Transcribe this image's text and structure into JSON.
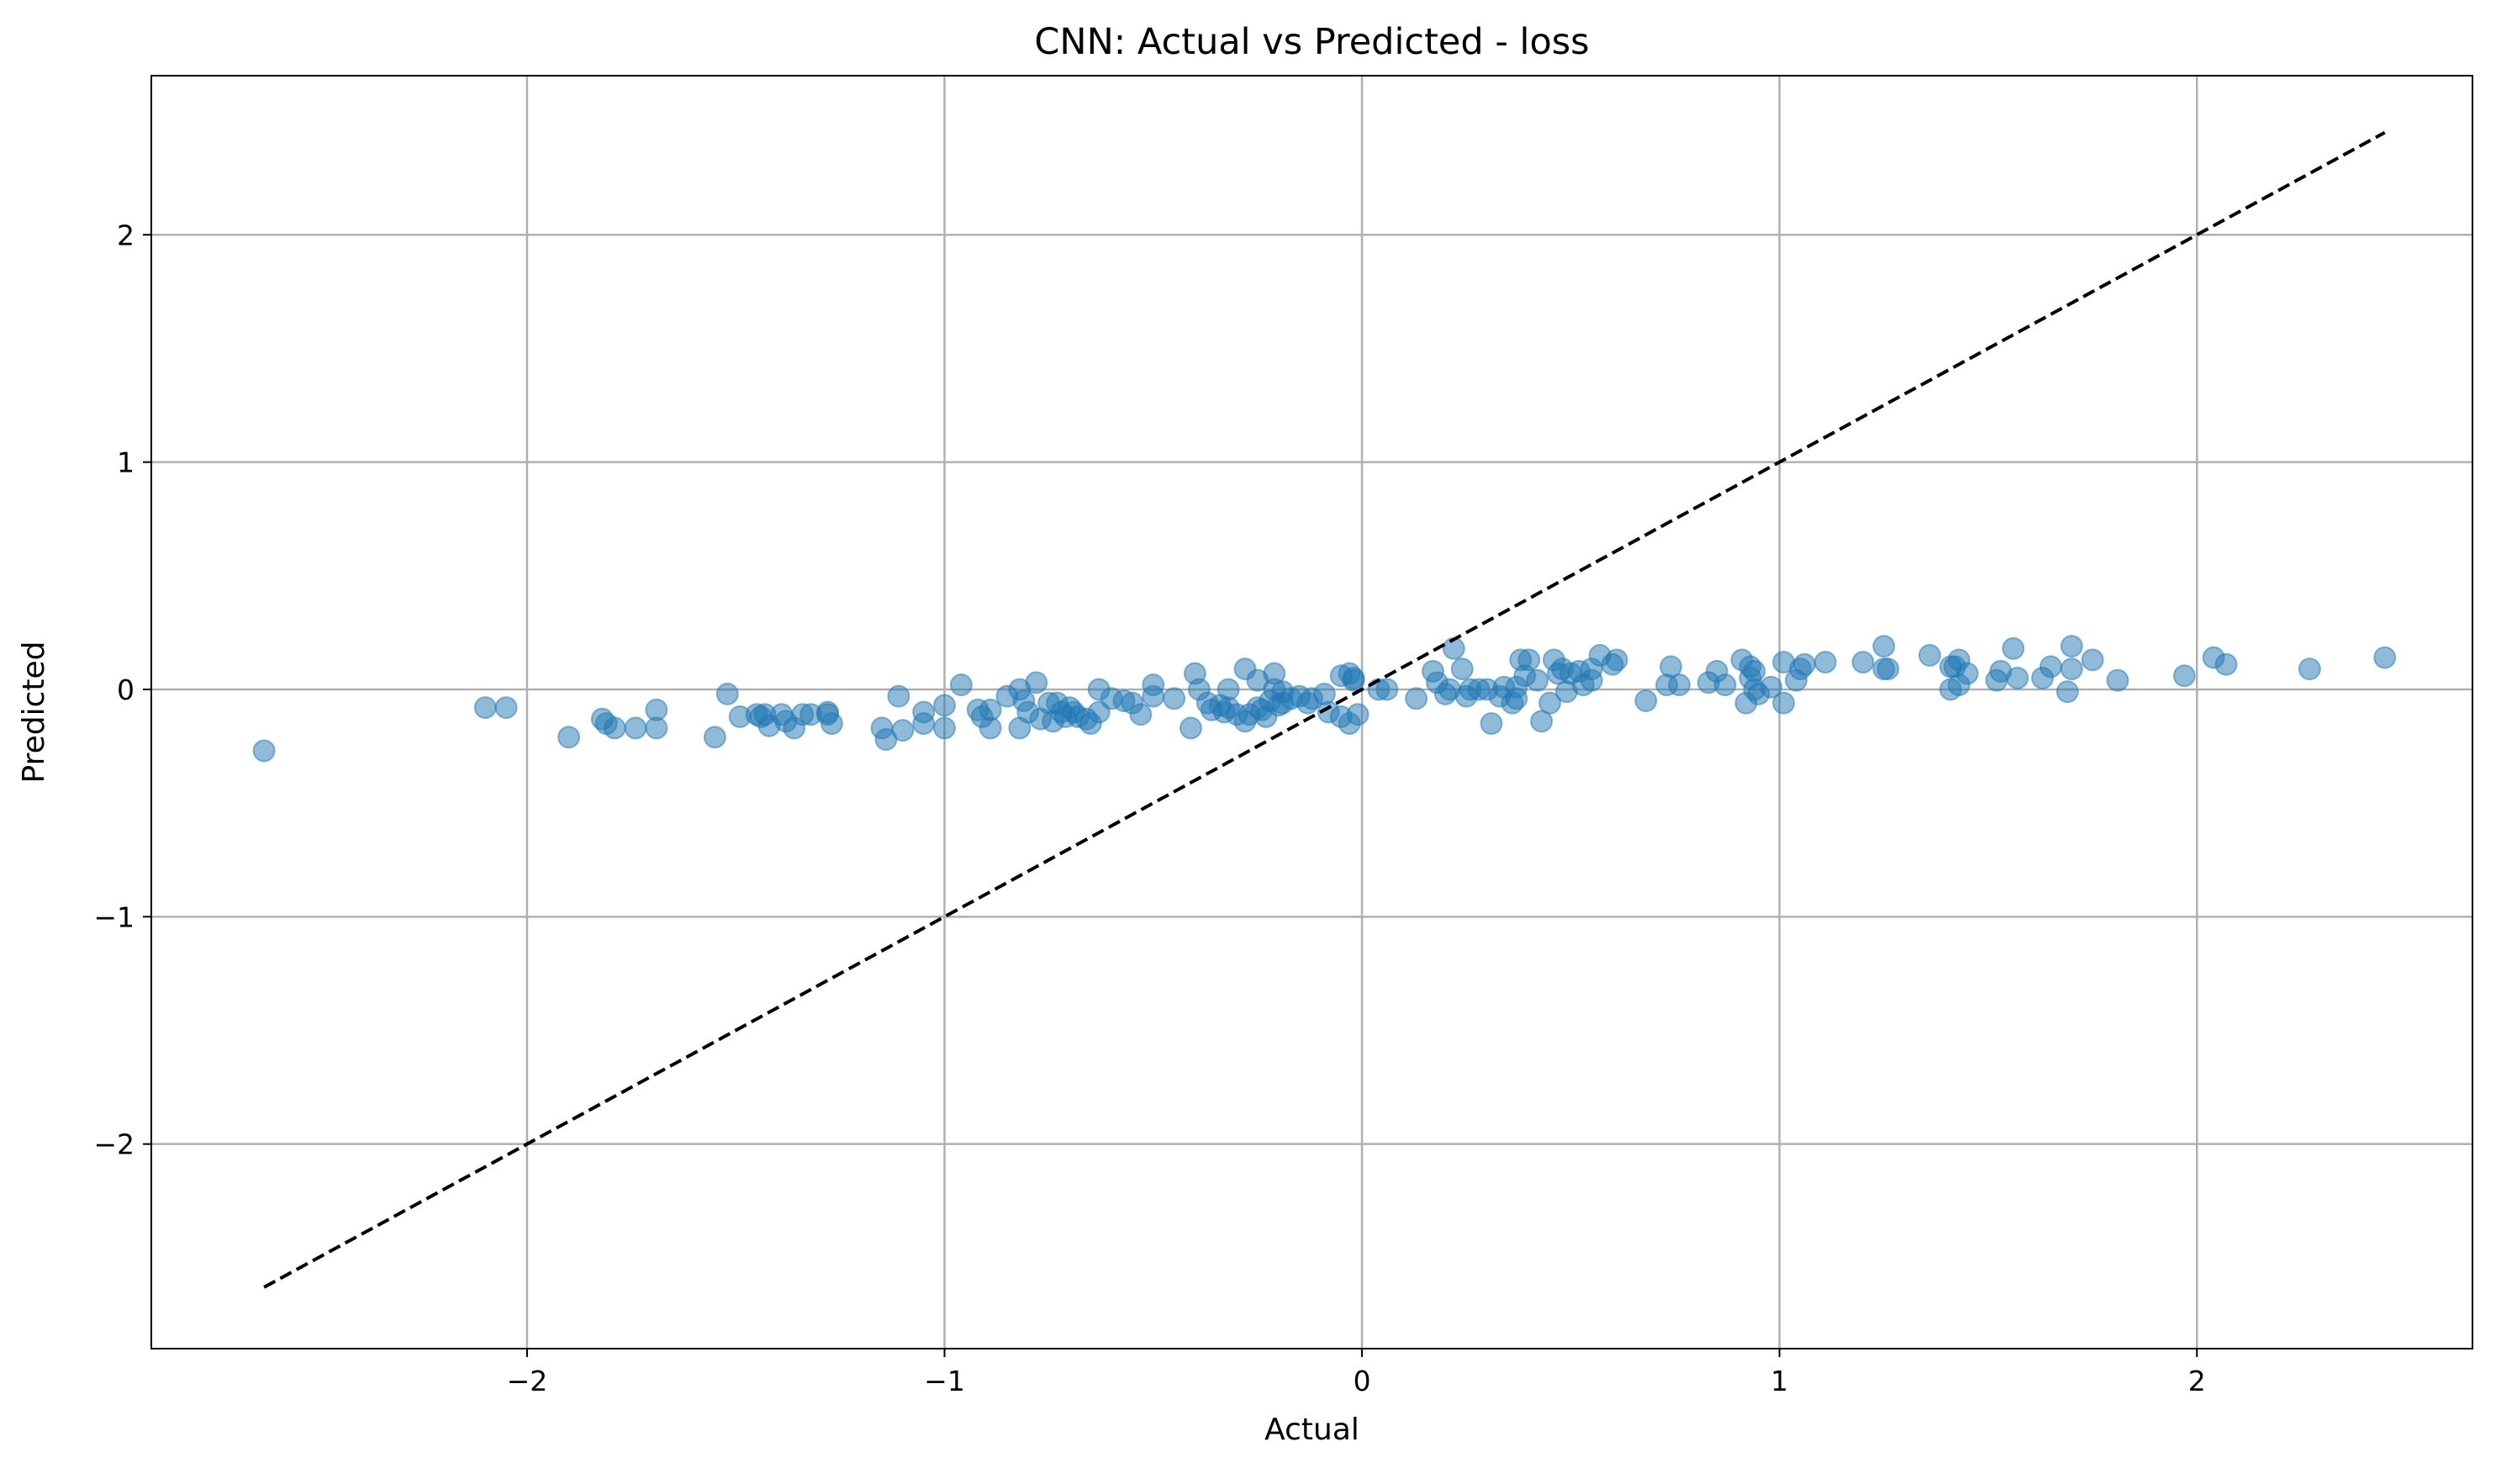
{
  "chart_data": {
    "type": "scatter",
    "title": "CNN: Actual vs Predicted - loss",
    "xlabel": "Actual",
    "ylabel": "Predicted",
    "xlim": [
      -2.9,
      2.66
    ],
    "ylim": [
      -2.9,
      2.7
    ],
    "xticks": [
      {
        "value": -2,
        "label": "−2"
      },
      {
        "value": -1,
        "label": "−1"
      },
      {
        "value": 0,
        "label": "0"
      },
      {
        "value": 1,
        "label": "1"
      },
      {
        "value": 2,
        "label": "2"
      }
    ],
    "yticks": [
      {
        "value": -2,
        "label": "−2"
      },
      {
        "value": -1,
        "label": "−1"
      },
      {
        "value": 0,
        "label": "0"
      },
      {
        "value": 1,
        "label": "1"
      },
      {
        "value": 2,
        "label": "2"
      }
    ],
    "grid": true,
    "colors": {
      "points": "#1f77b4",
      "reference_line": "#000000",
      "grid": "#b0b0b0"
    },
    "reference_line": {
      "style": "dashed",
      "from": [
        -2.63,
        -2.63
      ],
      "to": [
        2.45,
        2.45
      ]
    },
    "points": [
      [
        -2.63,
        -0.27
      ],
      [
        -2.1,
        -0.08
      ],
      [
        -2.05,
        -0.08
      ],
      [
        -1.9,
        -0.21
      ],
      [
        -1.82,
        -0.13
      ],
      [
        -1.81,
        -0.15
      ],
      [
        -1.79,
        -0.17
      ],
      [
        -1.74,
        -0.17
      ],
      [
        -1.69,
        -0.17
      ],
      [
        -1.69,
        -0.09
      ],
      [
        -1.55,
        -0.21
      ],
      [
        -1.52,
        -0.02
      ],
      [
        -1.49,
        -0.12
      ],
      [
        -1.45,
        -0.11
      ],
      [
        -1.44,
        -0.12
      ],
      [
        -1.43,
        -0.11
      ],
      [
        -1.42,
        -0.16
      ],
      [
        -1.39,
        -0.11
      ],
      [
        -1.38,
        -0.14
      ],
      [
        -1.36,
        -0.17
      ],
      [
        -1.34,
        -0.11
      ],
      [
        -1.32,
        -0.11
      ],
      [
        -1.28,
        -0.1
      ],
      [
        -1.28,
        -0.11
      ],
      [
        -1.27,
        -0.15
      ],
      [
        -1.15,
        -0.17
      ],
      [
        -1.14,
        -0.22
      ],
      [
        -1.11,
        -0.03
      ],
      [
        -1.1,
        -0.18
      ],
      [
        -1.05,
        -0.15
      ],
      [
        -1.05,
        -0.1
      ],
      [
        -1.0,
        -0.17
      ],
      [
        -1.0,
        -0.07
      ],
      [
        -0.96,
        0.02
      ],
      [
        -0.92,
        -0.09
      ],
      [
        -0.91,
        -0.12
      ],
      [
        -0.89,
        -0.17
      ],
      [
        -0.89,
        -0.09
      ],
      [
        -0.85,
        -0.03
      ],
      [
        -0.82,
        -0.17
      ],
      [
        -0.82,
        0.0
      ],
      [
        -0.81,
        -0.05
      ],
      [
        -0.8,
        -0.1
      ],
      [
        -0.78,
        0.03
      ],
      [
        -0.77,
        -0.13
      ],
      [
        -0.75,
        -0.06
      ],
      [
        -0.74,
        -0.14
      ],
      [
        -0.73,
        -0.06
      ],
      [
        -0.72,
        -0.1
      ],
      [
        -0.71,
        -0.12
      ],
      [
        -0.7,
        -0.08
      ],
      [
        -0.69,
        -0.1
      ],
      [
        -0.68,
        -0.12
      ],
      [
        -0.66,
        -0.13
      ],
      [
        -0.65,
        -0.15
      ],
      [
        -0.63,
        -0.1
      ],
      [
        -0.63,
        0.0
      ],
      [
        -0.6,
        -0.04
      ],
      [
        -0.57,
        -0.05
      ],
      [
        -0.55,
        -0.06
      ],
      [
        -0.53,
        -0.11
      ],
      [
        -0.5,
        -0.03
      ],
      [
        -0.5,
        0.02
      ],
      [
        -0.45,
        -0.04
      ],
      [
        -0.41,
        -0.17
      ],
      [
        -0.4,
        0.07
      ],
      [
        -0.39,
        0.0
      ],
      [
        -0.37,
        -0.06
      ],
      [
        -0.36,
        -0.09
      ],
      [
        -0.34,
        -0.07
      ],
      [
        -0.33,
        -0.1
      ],
      [
        -0.32,
        -0.08
      ],
      [
        -0.32,
        0.0
      ],
      [
        -0.3,
        -0.11
      ],
      [
        -0.28,
        -0.14
      ],
      [
        -0.28,
        0.09
      ],
      [
        -0.27,
        -0.11
      ],
      [
        -0.25,
        -0.08
      ],
      [
        -0.25,
        0.04
      ],
      [
        -0.24,
        -0.09
      ],
      [
        -0.23,
        -0.12
      ],
      [
        -0.22,
        -0.05
      ],
      [
        -0.21,
        0.0
      ],
      [
        -0.21,
        0.07
      ],
      [
        -0.2,
        -0.07
      ],
      [
        -0.19,
        -0.06
      ],
      [
        -0.19,
        -0.01
      ],
      [
        -0.17,
        -0.04
      ],
      [
        -0.15,
        -0.03
      ],
      [
        -0.13,
        -0.06
      ],
      [
        -0.12,
        -0.04
      ],
      [
        -0.09,
        -0.02
      ],
      [
        -0.08,
        -0.1
      ],
      [
        -0.05,
        -0.12
      ],
      [
        -0.05,
        0.06
      ],
      [
        -0.03,
        0.07
      ],
      [
        -0.02,
        0.05
      ],
      [
        -0.03,
        -0.15
      ],
      [
        -0.02,
        0.04
      ],
      [
        -0.01,
        -0.11
      ],
      [
        0.04,
        0.0
      ],
      [
        0.06,
        0.0
      ],
      [
        0.13,
        -0.04
      ],
      [
        0.17,
        0.08
      ],
      [
        0.18,
        0.03
      ],
      [
        0.2,
        -0.02
      ],
      [
        0.21,
        0.0
      ],
      [
        0.22,
        0.18
      ],
      [
        0.24,
        0.09
      ],
      [
        0.25,
        -0.03
      ],
      [
        0.26,
        0.0
      ],
      [
        0.28,
        0.0
      ],
      [
        0.3,
        0.0
      ],
      [
        0.31,
        -0.15
      ],
      [
        0.33,
        -0.03
      ],
      [
        0.34,
        0.01
      ],
      [
        0.36,
        -0.06
      ],
      [
        0.37,
        0.01
      ],
      [
        0.37,
        -0.04
      ],
      [
        0.38,
        0.13
      ],
      [
        0.39,
        0.06
      ],
      [
        0.4,
        0.13
      ],
      [
        0.42,
        0.04
      ],
      [
        0.43,
        -0.14
      ],
      [
        0.45,
        -0.06
      ],
      [
        0.46,
        0.13
      ],
      [
        0.47,
        0.07
      ],
      [
        0.48,
        0.09
      ],
      [
        0.49,
        -0.01
      ],
      [
        0.5,
        0.07
      ],
      [
        0.52,
        0.08
      ],
      [
        0.53,
        0.02
      ],
      [
        0.55,
        0.04
      ],
      [
        0.55,
        0.09
      ],
      [
        0.57,
        0.15
      ],
      [
        0.6,
        0.11
      ],
      [
        0.61,
        0.13
      ],
      [
        0.68,
        -0.05
      ],
      [
        0.73,
        0.02
      ],
      [
        0.74,
        0.1
      ],
      [
        0.76,
        0.02
      ],
      [
        0.83,
        0.03
      ],
      [
        0.85,
        0.08
      ],
      [
        0.87,
        0.02
      ],
      [
        0.91,
        0.13
      ],
      [
        0.92,
        -0.06
      ],
      [
        0.93,
        0.1
      ],
      [
        0.93,
        0.05
      ],
      [
        0.94,
        0.0
      ],
      [
        0.94,
        0.08
      ],
      [
        0.95,
        -0.02
      ],
      [
        0.98,
        0.01
      ],
      [
        1.01,
        -0.06
      ],
      [
        1.01,
        0.12
      ],
      [
        1.04,
        0.04
      ],
      [
        1.05,
        0.09
      ],
      [
        1.06,
        0.11
      ],
      [
        1.11,
        0.12
      ],
      [
        1.2,
        0.12
      ],
      [
        1.25,
        0.19
      ],
      [
        1.25,
        0.09
      ],
      [
        1.26,
        0.09
      ],
      [
        1.36,
        0.15
      ],
      [
        1.41,
        0.1
      ],
      [
        1.41,
        0.0
      ],
      [
        1.42,
        0.1
      ],
      [
        1.43,
        0.13
      ],
      [
        1.43,
        0.02
      ],
      [
        1.45,
        0.07
      ],
      [
        1.52,
        0.04
      ],
      [
        1.53,
        0.08
      ],
      [
        1.56,
        0.18
      ],
      [
        1.57,
        0.05
      ],
      [
        1.63,
        0.05
      ],
      [
        1.65,
        0.1
      ],
      [
        1.69,
        -0.01
      ],
      [
        1.7,
        0.09
      ],
      [
        1.7,
        0.19
      ],
      [
        1.75,
        0.13
      ],
      [
        1.81,
        0.04
      ],
      [
        1.97,
        0.06
      ],
      [
        2.04,
        0.14
      ],
      [
        2.07,
        0.11
      ],
      [
        2.27,
        0.09
      ],
      [
        2.45,
        0.14
      ]
    ]
  }
}
